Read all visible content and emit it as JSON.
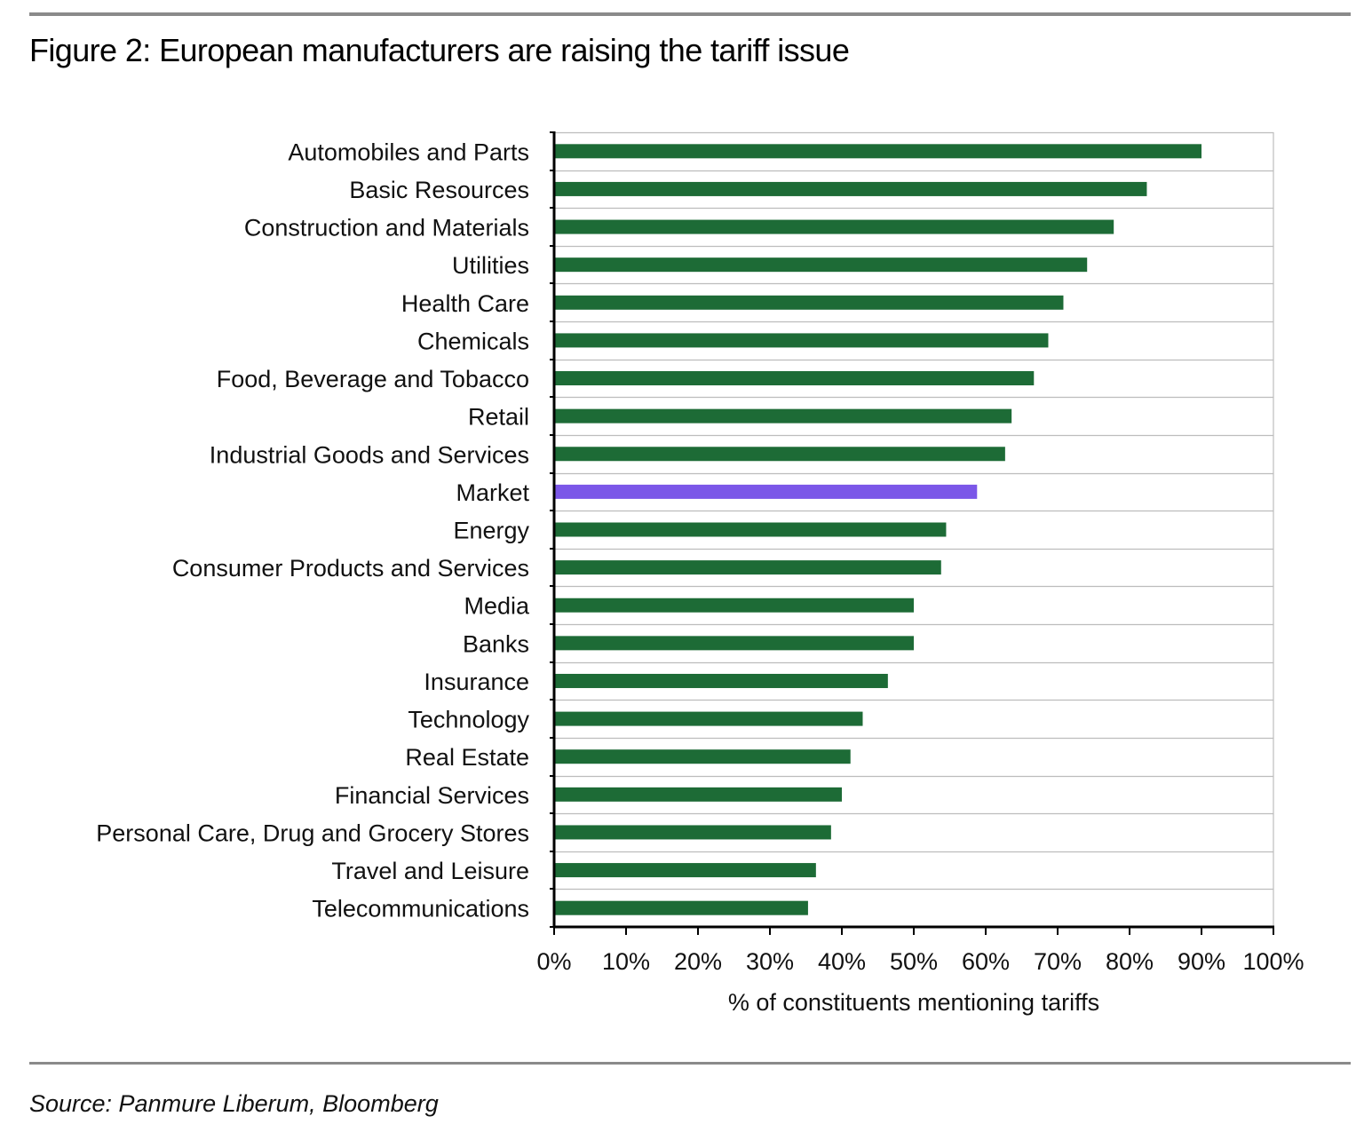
{
  "title": "Figure 2: European manufacturers are raising the tariff issue",
  "source": "Source: Panmure Liberum, Bloomberg",
  "colors": {
    "bar": "#1d6b36",
    "highlight": "#7b57e8",
    "grid": "#bdbdbd",
    "axis": "#000000",
    "rule": "#8a8a8a"
  },
  "chart_data": {
    "type": "bar",
    "orientation": "horizontal",
    "title": "Figure 2: European manufacturers are raising the tariff issue",
    "xlabel": "% of constituents mentioning tariffs",
    "ylabel": "",
    "xlim": [
      0,
      100
    ],
    "x_ticks": [
      "0%",
      "10%",
      "20%",
      "30%",
      "40%",
      "50%",
      "60%",
      "70%",
      "80%",
      "90%",
      "100%"
    ],
    "grid": "horizontal",
    "highlight_category": "Market",
    "categories": [
      "Automobiles and Parts",
      "Basic Resources",
      "Construction and Materials",
      "Utilities",
      "Health Care",
      "Chemicals",
      "Food, Beverage and Tobacco",
      "Retail",
      "Industrial Goods and Services",
      "Market",
      "Energy",
      "Consumer Products and Services",
      "Media",
      "Banks",
      "Insurance",
      "Technology",
      "Real Estate",
      "Financial Services",
      "Personal Care, Drug and Grocery Stores",
      "Travel and Leisure",
      "Telecommunications"
    ],
    "values": [
      90,
      82.4,
      77.8,
      74.1,
      70.8,
      68.7,
      66.7,
      63.6,
      62.7,
      58.8,
      54.5,
      53.8,
      50,
      50,
      46.4,
      42.9,
      41.2,
      40,
      38.5,
      36.4,
      35.3
    ]
  }
}
